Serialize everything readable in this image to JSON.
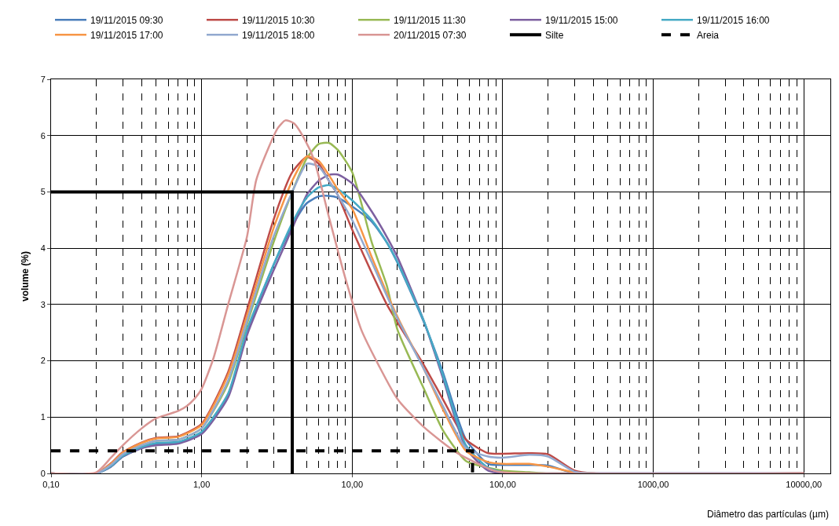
{
  "chart_data": {
    "type": "line",
    "xlabel": "Diâmetro das partículas (µm)",
    "ylabel": "volume (%)",
    "log": "x",
    "grid": true,
    "legend": "top",
    "marker": "none",
    "xlim": [
      0.1,
      15000
    ],
    "ylim": [
      0,
      7
    ],
    "xticks": [
      {
        "value": 0.1,
        "label": "0,10"
      },
      {
        "value": 1,
        "label": "1,00"
      },
      {
        "value": 10,
        "label": "10,00"
      },
      {
        "value": 100,
        "label": "100,00"
      },
      {
        "value": 1000,
        "label": "1000,00"
      },
      {
        "value": 10000,
        "label": "10000,00"
      }
    ],
    "yticks": [
      0,
      1,
      2,
      3,
      4,
      5,
      6,
      7
    ],
    "x": [
      0.1,
      0.2,
      0.25,
      0.3,
      0.4,
      0.5,
      0.7,
      1,
      1.5,
      2,
      3,
      4,
      5,
      6,
      7,
      8,
      10,
      13.5,
      17,
      20,
      30,
      40,
      57,
      80,
      100,
      150,
      200,
      300,
      400,
      10000
    ],
    "series": [
      {
        "name": "19/11/2015 09:30",
        "color": "#4a7ebb",
        "values": [
          0,
          0,
          0.12,
          0.3,
          0.45,
          0.52,
          0.55,
          0.72,
          1.4,
          2.5,
          3.7,
          4.4,
          4.8,
          4.92,
          4.93,
          4.9,
          4.74,
          4.47,
          4.1,
          3.74,
          2.68,
          1.8,
          0.6,
          0.17,
          0.15,
          0.15,
          0.14,
          0,
          0,
          0
        ]
      },
      {
        "name": "19/11/2015 10:30",
        "color": "#be4b48",
        "values": [
          0,
          0,
          0.18,
          0.38,
          0.55,
          0.63,
          0.66,
          0.88,
          1.8,
          2.9,
          4.5,
          5.35,
          5.62,
          5.5,
          5.2,
          4.95,
          4.33,
          3.56,
          3.0,
          2.68,
          1.92,
          1.32,
          0.6,
          0.36,
          0.35,
          0.36,
          0.34,
          0.05,
          0,
          0
        ]
      },
      {
        "name": "19/11/2015 11:30",
        "color": "#98b954",
        "values": [
          null,
          null,
          null,
          0.35,
          0.5,
          0.58,
          0.6,
          0.8,
          1.6,
          2.65,
          4.1,
          5.0,
          5.6,
          5.85,
          5.87,
          5.75,
          5.35,
          4.1,
          3.33,
          2.55,
          1.5,
          0.77,
          0.22,
          0.1,
          0.05,
          0.02,
          0,
          0,
          null,
          null
        ]
      },
      {
        "name": "19/11/2015 15:00",
        "color": "#7d60a0",
        "values": [
          0,
          0,
          0.12,
          0.3,
          0.45,
          0.5,
          0.53,
          0.7,
          1.35,
          2.45,
          3.6,
          4.35,
          4.95,
          5.2,
          5.3,
          5.31,
          5.15,
          4.65,
          4.2,
          3.84,
          2.7,
          1.7,
          0.45,
          0.05,
          0,
          0,
          0,
          0,
          0,
          0
        ]
      },
      {
        "name": "19/11/2015 16:00",
        "color": "#46aac5",
        "values": [
          0,
          0,
          0.13,
          0.31,
          0.47,
          0.54,
          0.56,
          0.74,
          1.42,
          2.55,
          3.7,
          4.45,
          4.9,
          5.08,
          5.12,
          5.05,
          4.85,
          4.5,
          4.1,
          3.75,
          2.7,
          1.75,
          0.5,
          0.1,
          0.02,
          null,
          null,
          null,
          null,
          null
        ]
      },
      {
        "name": "19/11/2015 17:00",
        "color": "#f79646",
        "values": [
          0,
          0,
          0.17,
          0.37,
          0.54,
          0.62,
          0.65,
          0.86,
          1.75,
          2.8,
          4.35,
          5.2,
          5.63,
          5.55,
          5.3,
          5.05,
          4.7,
          3.84,
          3.2,
          2.78,
          1.85,
          1.14,
          0.4,
          0.2,
          0.17,
          0.17,
          0.12,
          0.02,
          0,
          0
        ]
      },
      {
        "name": "19/11/2015 18:00",
        "color": "#92a9cf",
        "values": [
          0,
          0,
          0.15,
          0.34,
          0.5,
          0.58,
          0.6,
          0.8,
          1.65,
          2.7,
          4.2,
          5.0,
          5.5,
          5.45,
          5.2,
          4.95,
          4.5,
          3.75,
          3.15,
          2.75,
          1.85,
          1.2,
          0.45,
          0.3,
          0.28,
          0.33,
          0.3,
          0.03,
          0,
          0
        ]
      },
      {
        "name": "20/11/2015 07:30",
        "color": "#d99694",
        "x": [
          0.1,
          0.2,
          0.25,
          0.3,
          0.4,
          0.5,
          0.6,
          0.7,
          0.8,
          0.9,
          1,
          1.2,
          1.5,
          2,
          2.3,
          2.8,
          3.2,
          3.6,
          4.1,
          4.8,
          5.6,
          7,
          9,
          11.5,
          15,
          20,
          30,
          50,
          90,
          150,
          10000
        ],
        "values": [
          0,
          0.02,
          0.28,
          0.5,
          0.8,
          0.98,
          1.05,
          1.11,
          1.2,
          1.33,
          1.5,
          2.05,
          3.0,
          4.2,
          5.2,
          5.8,
          6.13,
          6.27,
          6.22,
          5.95,
          5.56,
          4.56,
          3.47,
          2.55,
          1.92,
          1.32,
          0.82,
          0.36,
          0.04,
          0,
          0
        ]
      },
      {
        "name": "Silte",
        "color": "#000000",
        "x": [
          0.1,
          4,
          4
        ],
        "values": [
          5,
          5,
          0
        ],
        "line_style": "solid"
      },
      {
        "name": "Areia",
        "color": "#000000",
        "x": [
          0.1,
          63,
          63
        ],
        "values": [
          0.4,
          0.4,
          0
        ],
        "line_style": "dashed"
      }
    ]
  }
}
